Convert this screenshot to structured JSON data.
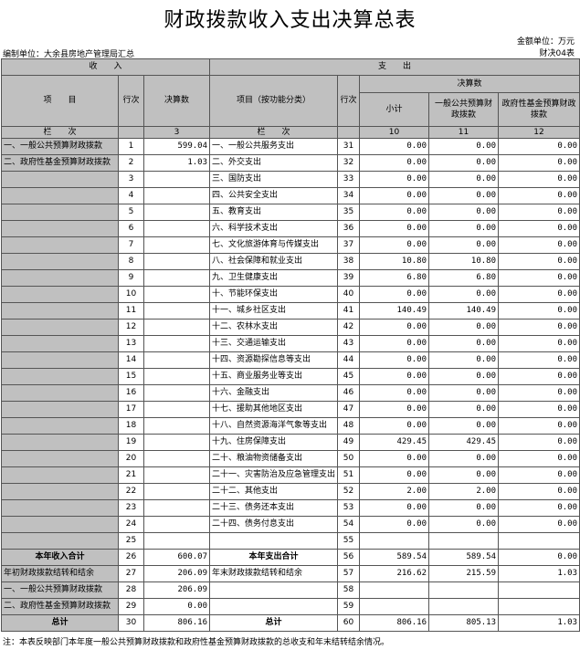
{
  "header": {
    "title": "财政拨款收入支出决算总表",
    "unit": "金额单位：万元",
    "form_no": "财决04表",
    "org": "编制单位：大余县房地产管理局汇总"
  },
  "table": {
    "income_head": "收　　入",
    "expense_head": "支　　出",
    "columns": {
      "item": "项　　目",
      "row_no": "行次",
      "amount": "决算数",
      "func_item": "项目（按功能分类）",
      "row_no2": "行次",
      "amount2": "决算数",
      "subtotal": "小计",
      "general": "一般公共预算财政拨款",
      "fund": "政府性基金预算财政拨款"
    },
    "col_index": [
      "栏　　次",
      null,
      "3",
      "栏　　次",
      null,
      "10",
      "11",
      "12"
    ],
    "rows": [
      [
        "一、一般公共预算财政拨款",
        "1",
        "599.04",
        "一、一般公共服务支出",
        "31",
        "0.00",
        "0.00",
        "0.00"
      ],
      [
        "二、政府性基金预算财政拨款",
        "2",
        "1.03",
        "二、外交支出",
        "32",
        "0.00",
        "0.00",
        "0.00"
      ],
      [
        null,
        "3",
        null,
        "三、国防支出",
        "33",
        "0.00",
        "0.00",
        "0.00"
      ],
      [
        null,
        "4",
        null,
        "四、公共安全支出",
        "34",
        "0.00",
        "0.00",
        "0.00"
      ],
      [
        null,
        "5",
        null,
        "五、教育支出",
        "35",
        "0.00",
        "0.00",
        "0.00"
      ],
      [
        null,
        "6",
        null,
        "六、科学技术支出",
        "36",
        "0.00",
        "0.00",
        "0.00"
      ],
      [
        null,
        "7",
        null,
        "七、文化旅游体育与传媒支出",
        "37",
        "0.00",
        "0.00",
        "0.00"
      ],
      [
        null,
        "8",
        null,
        "八、社会保障和就业支出",
        "38",
        "10.80",
        "10.80",
        "0.00"
      ],
      [
        null,
        "9",
        null,
        "九、卫生健康支出",
        "39",
        "6.80",
        "6.80",
        "0.00"
      ],
      [
        null,
        "10",
        null,
        "十、节能环保支出",
        "40",
        "0.00",
        "0.00",
        "0.00"
      ],
      [
        null,
        "11",
        null,
        "十一、城乡社区支出",
        "41",
        "140.49",
        "140.49",
        "0.00"
      ],
      [
        null,
        "12",
        null,
        "十二、农林水支出",
        "42",
        "0.00",
        "0.00",
        "0.00"
      ],
      [
        null,
        "13",
        null,
        "十三、交通运输支出",
        "43",
        "0.00",
        "0.00",
        "0.00"
      ],
      [
        null,
        "14",
        null,
        "十四、资源勘探信息等支出",
        "44",
        "0.00",
        "0.00",
        "0.00"
      ],
      [
        null,
        "15",
        null,
        "十五、商业服务业等支出",
        "45",
        "0.00",
        "0.00",
        "0.00"
      ],
      [
        null,
        "16",
        null,
        "十六、金融支出",
        "46",
        "0.00",
        "0.00",
        "0.00"
      ],
      [
        null,
        "17",
        null,
        "十七、援助其他地区支出",
        "47",
        "0.00",
        "0.00",
        "0.00"
      ],
      [
        null,
        "18",
        null,
        "十八、自然资源海洋气象等支出",
        "48",
        "0.00",
        "0.00",
        "0.00"
      ],
      [
        null,
        "19",
        null,
        "十九、住房保障支出",
        "49",
        "429.45",
        "429.45",
        "0.00"
      ],
      [
        null,
        "20",
        null,
        "二十、粮油物资储备支出",
        "50",
        "0.00",
        "0.00",
        "0.00"
      ],
      [
        null,
        "21",
        null,
        "二十一、灾害防治及应急管理支出",
        "51",
        "0.00",
        "0.00",
        "0.00"
      ],
      [
        null,
        "22",
        null,
        "二十二、其他支出",
        "52",
        "2.00",
        "2.00",
        "0.00"
      ],
      [
        null,
        "23",
        null,
        "二十三、债务还本支出",
        "53",
        "0.00",
        "0.00",
        "0.00"
      ],
      [
        null,
        "24",
        null,
        "二十四、债务付息支出",
        "54",
        "0.00",
        "0.00",
        "0.00"
      ],
      [
        null,
        "25",
        null,
        null,
        "55",
        null,
        null,
        null
      ],
      [
        "本年收入合计",
        "26",
        "600.07",
        "本年支出合计",
        "56",
        "589.54",
        "589.54",
        "0.00"
      ],
      [
        "年初财政拨款结转和结余",
        "27",
        "206.09",
        "年末财政拨款结转和结余",
        "57",
        "216.62",
        "215.59",
        "1.03"
      ],
      [
        "一、一般公共预算财政拨款",
        "28",
        "206.09",
        null,
        "58",
        null,
        null,
        null
      ],
      [
        "二、政府性基金预算财政拨款",
        "29",
        "0.00",
        null,
        "59",
        null,
        null,
        null
      ],
      [
        "总计",
        "30",
        "806.16",
        "总计",
        "60",
        "806.16",
        "805.13",
        "1.03"
      ]
    ]
  },
  "note": "注：本表反映部门本年度一般公共预算财政拨款和政府性基金预算财政拨款的总收支和年末结转结余情况。"
}
